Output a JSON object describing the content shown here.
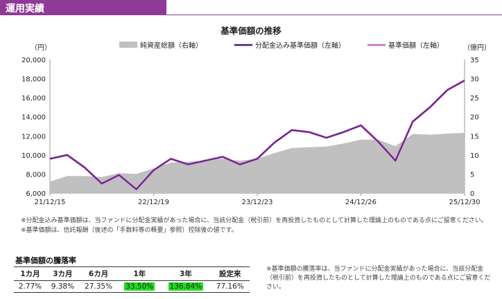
{
  "section": {
    "title": "運用実績"
  },
  "chart_data": {
    "type": "line",
    "title": "基準価額の推移",
    "y_left_label": "（円）",
    "y_right_label": "（億円）",
    "y_left_range": [
      6000,
      20000
    ],
    "y_left_ticks": [
      "6,000",
      "8,000",
      "10,000",
      "12,000",
      "14,000",
      "16,000",
      "18,000",
      "20,000"
    ],
    "y_right_range": [
      0,
      35
    ],
    "y_right_ticks": [
      "0",
      "5",
      "10",
      "15",
      "20",
      "25",
      "30",
      "35"
    ],
    "x_ticks": [
      "21/12/15",
      "22/12/19",
      "23/12/23",
      "24/12/26",
      "25/12/30"
    ],
    "legend": [
      {
        "label": "純資産総額（右軸）",
        "kind": "area",
        "color": "#c0c0c0"
      },
      {
        "label": "分配金込み基準価額（左軸）",
        "kind": "line",
        "color": "#4b1a6e"
      },
      {
        "label": "基準価額（左軸）",
        "kind": "line",
        "color": "#c266c8"
      }
    ],
    "series": [
      {
        "name": "分配金込み基準価額（左軸）",
        "axis": "left",
        "x": [
          "21/12/15",
          "22/02",
          "22/04",
          "22/06",
          "22/08",
          "22/10",
          "22/12",
          "23/02",
          "23/04",
          "23/06",
          "23/08",
          "23/10",
          "23/12",
          "24/02",
          "24/04",
          "24/06",
          "24/08",
          "24/10",
          "24/12",
          "25/02",
          "25/04",
          "25/06",
          "25/08",
          "25/10",
          "25/12/30"
        ],
        "values": [
          9600,
          10000,
          8700,
          7000,
          7900,
          6400,
          8400,
          9600,
          9000,
          9400,
          9800,
          9000,
          9600,
          11300,
          12600,
          12400,
          11800,
          12400,
          13100,
          11400,
          9400,
          13500,
          15000,
          16800,
          17800
        ]
      },
      {
        "name": "基準価額（左軸）",
        "axis": "left",
        "x": [
          "21/12/15",
          "22/02",
          "22/04",
          "22/06",
          "22/08",
          "22/10",
          "22/12",
          "23/02",
          "23/04",
          "23/06",
          "23/08",
          "23/10",
          "23/12",
          "24/02",
          "24/04",
          "24/06",
          "24/08",
          "24/10",
          "24/12",
          "25/02",
          "25/04",
          "25/06",
          "25/08",
          "25/10",
          "25/12/30"
        ],
        "values": [
          9600,
          10000,
          8700,
          7000,
          7900,
          6400,
          8400,
          9600,
          9000,
          9400,
          9800,
          9000,
          9600,
          11300,
          12600,
          12400,
          11800,
          12400,
          13100,
          11400,
          9400,
          13500,
          15000,
          16800,
          17800
        ]
      },
      {
        "name": "純資産総額（右軸）",
        "axis": "right",
        "x": [
          "21/12/15",
          "22/02",
          "22/04",
          "22/06",
          "22/08",
          "22/10",
          "22/12",
          "23/02",
          "23/04",
          "23/06",
          "23/08",
          "23/10",
          "23/12",
          "24/02",
          "24/04",
          "24/06",
          "24/08",
          "24/10",
          "24/12",
          "25/02",
          "25/04",
          "25/06",
          "25/08",
          "25/10",
          "25/12/30"
        ],
        "values": [
          3.0,
          4.5,
          4.5,
          4.2,
          5.2,
          5.0,
          6.5,
          8.0,
          8.2,
          8.6,
          9.0,
          8.5,
          9.0,
          10.5,
          11.8,
          12.0,
          12.2,
          13.0,
          14.0,
          14.0,
          12.3,
          15.5,
          15.3,
          15.6,
          15.8
        ]
      }
    ]
  },
  "notes": [
    "※分配金込み基準価額は、当ファンドに分配金実績があった場合に、当該分配金（税引前）を再投資したものとして計算した理論上のものである点にご留意ください。",
    "※基準価額は、信託報酬（後述の「手数料等の概要」参照）控除後の値です。"
  ],
  "performance": {
    "title": "基準価額の騰落率",
    "headers": [
      "1カ月",
      "3カ月",
      "6カ月",
      "1年",
      "3年",
      "設定来"
    ],
    "values": [
      "2.77%",
      "9.38%",
      "27.35%",
      "33.50%",
      "136.84%",
      "77.16%"
    ],
    "highlight_color": "#22dd22"
  },
  "performance_note": "※基準価額の騰落率は、当ファンドに分配金実績があった場合に、当該分配金（税引前）を再投資したものとして計算した理論上のものである点にご留意ください。"
}
